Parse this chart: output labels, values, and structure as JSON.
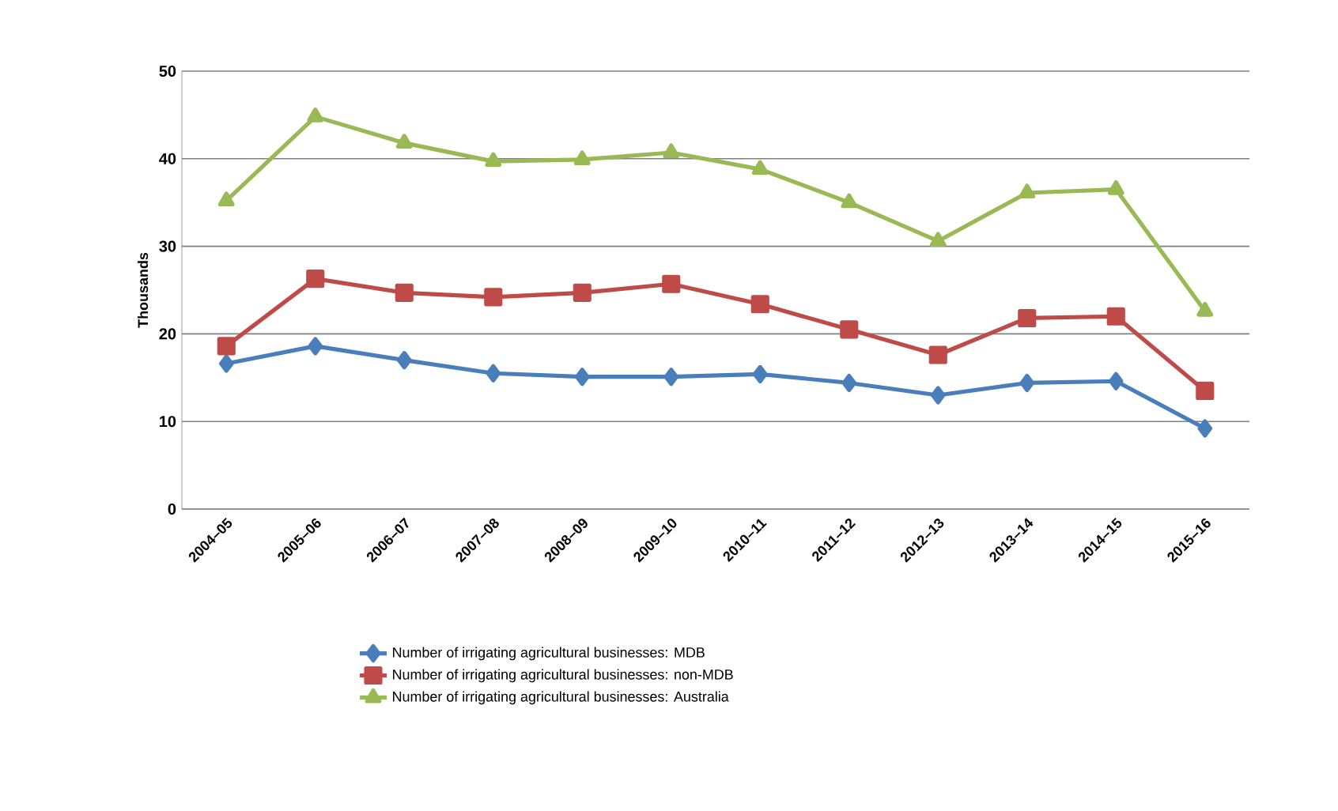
{
  "chart_data": {
    "type": "line",
    "ylabel": "Thousands",
    "categories": [
      "2004–05",
      "2005–06",
      "2006–07",
      "2007–08",
      "2008–09",
      "2009–10",
      "2010–11",
      "2011–12",
      "2012–13",
      "2013–14",
      "2014–15",
      "2015–16"
    ],
    "series": [
      {
        "name": "Number of irrigating agricultural businesses: MDB",
        "color": "#4a7ebb",
        "marker": "diamond",
        "values": [
          16.6,
          18.6,
          17.0,
          15.5,
          15.1,
          15.1,
          15.4,
          14.4,
          13.0,
          14.4,
          14.6,
          9.2
        ]
      },
      {
        "name": "Number of irrigating agricultural businesses: non-MDB",
        "color": "#be4b48",
        "marker": "square",
        "values": [
          18.6,
          26.3,
          24.7,
          24.2,
          24.7,
          25.7,
          23.4,
          20.5,
          17.6,
          21.8,
          22.0,
          13.5
        ]
      },
      {
        "name": "Number of irrigating agricultural businesses: Australia",
        "color": "#98b954",
        "marker": "triangle",
        "values": [
          35.2,
          44.8,
          41.8,
          39.7,
          39.9,
          40.7,
          38.8,
          35.0,
          30.6,
          36.1,
          36.5,
          22.6
        ]
      }
    ],
    "ylim": [
      0,
      50
    ],
    "yticks": [
      0,
      10,
      20,
      30,
      40,
      50
    ],
    "grid": "y",
    "legend": "bottom",
    "line_style": "solid"
  }
}
